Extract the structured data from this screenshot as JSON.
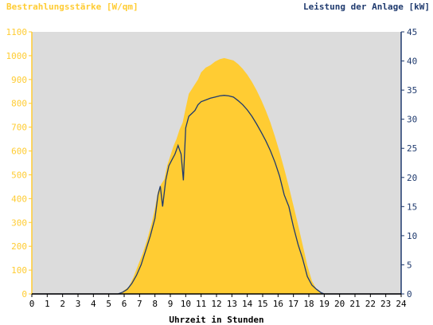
{
  "colors": {
    "plot_background": "#dcdcdc",
    "irradiance": "#ffcc33",
    "power": "#1f3a6e",
    "left_axis_text": "#ffcc33",
    "right_axis_text": "#1f3a6e",
    "x_axis_text": "#000000"
  },
  "chart_data": {
    "type": "area",
    "left_title": "Bestrahlungsstärke [W/qm]",
    "right_title": "Leistung der Anlage [kW]",
    "xlabel": "Uhrzeit in Stunden",
    "xlim": [
      0,
      24
    ],
    "y_left_lim": [
      0,
      1100
    ],
    "y_right_lim": [
      0,
      45
    ],
    "grid": false,
    "x_ticks": [
      0,
      1,
      2,
      3,
      4,
      5,
      6,
      7,
      8,
      9,
      10,
      11,
      12,
      13,
      14,
      15,
      16,
      17,
      18,
      19,
      20,
      21,
      22,
      23,
      24
    ],
    "y_left_ticks": [
      0,
      100,
      200,
      300,
      400,
      500,
      600,
      700,
      800,
      900,
      1000,
      1100
    ],
    "y_right_ticks": [
      0,
      5,
      10,
      15,
      20,
      25,
      30,
      35,
      40,
      45
    ],
    "series": [
      {
        "name": "Bestrahlungsstärke [W/qm]",
        "axis": "left",
        "style": "area",
        "points": [
          [
            0,
            0
          ],
          [
            5.5,
            0
          ],
          [
            5.8,
            5
          ],
          [
            6.0,
            15
          ],
          [
            6.3,
            30
          ],
          [
            6.6,
            70
          ],
          [
            6.9,
            120
          ],
          [
            7.2,
            170
          ],
          [
            7.5,
            230
          ],
          [
            7.8,
            300
          ],
          [
            8.0,
            360
          ],
          [
            8.2,
            430
          ],
          [
            8.4,
            460
          ],
          [
            8.6,
            480
          ],
          [
            8.8,
            540
          ],
          [
            9.0,
            580
          ],
          [
            9.2,
            620
          ],
          [
            9.4,
            650
          ],
          [
            9.6,
            690
          ],
          [
            9.8,
            720
          ],
          [
            10.0,
            780
          ],
          [
            10.2,
            840
          ],
          [
            10.4,
            860
          ],
          [
            10.6,
            880
          ],
          [
            10.8,
            900
          ],
          [
            11.0,
            930
          ],
          [
            11.3,
            950
          ],
          [
            11.6,
            960
          ],
          [
            11.9,
            975
          ],
          [
            12.2,
            985
          ],
          [
            12.5,
            990
          ],
          [
            12.8,
            985
          ],
          [
            13.1,
            980
          ],
          [
            13.4,
            965
          ],
          [
            13.7,
            945
          ],
          [
            14.0,
            920
          ],
          [
            14.3,
            890
          ],
          [
            14.6,
            855
          ],
          [
            14.9,
            815
          ],
          [
            15.2,
            770
          ],
          [
            15.5,
            720
          ],
          [
            15.8,
            660
          ],
          [
            16.1,
            595
          ],
          [
            16.4,
            525
          ],
          [
            16.7,
            450
          ],
          [
            17.0,
            370
          ],
          [
            17.3,
            290
          ],
          [
            17.6,
            205
          ],
          [
            17.9,
            120
          ],
          [
            18.2,
            55
          ],
          [
            18.5,
            20
          ],
          [
            18.8,
            5
          ],
          [
            19.0,
            0
          ],
          [
            24,
            0
          ]
        ]
      },
      {
        "name": "Leistung der Anlage [kW]",
        "axis": "right",
        "style": "line",
        "points": [
          [
            0,
            0
          ],
          [
            5.6,
            0
          ],
          [
            5.9,
            0.3
          ],
          [
            6.2,
            0.8
          ],
          [
            6.5,
            1.8
          ],
          [
            6.8,
            3.2
          ],
          [
            7.1,
            5.0
          ],
          [
            7.4,
            7.5
          ],
          [
            7.7,
            10.0
          ],
          [
            8.0,
            13.0
          ],
          [
            8.2,
            17.0
          ],
          [
            8.35,
            18.5
          ],
          [
            8.5,
            15.0
          ],
          [
            8.7,
            19.5
          ],
          [
            8.9,
            22.0
          ],
          [
            9.1,
            23.0
          ],
          [
            9.3,
            24.0
          ],
          [
            9.5,
            25.5
          ],
          [
            9.7,
            24.0
          ],
          [
            9.85,
            19.5
          ],
          [
            10.0,
            28.5
          ],
          [
            10.2,
            30.5
          ],
          [
            10.4,
            31.0
          ],
          [
            10.6,
            31.5
          ],
          [
            10.8,
            32.5
          ],
          [
            11.0,
            33.0
          ],
          [
            11.3,
            33.3
          ],
          [
            11.6,
            33.6
          ],
          [
            11.9,
            33.8
          ],
          [
            12.2,
            34.0
          ],
          [
            12.5,
            34.1
          ],
          [
            12.8,
            34.0
          ],
          [
            13.1,
            33.8
          ],
          [
            13.4,
            33.2
          ],
          [
            13.7,
            32.5
          ],
          [
            14.0,
            31.6
          ],
          [
            14.3,
            30.5
          ],
          [
            14.6,
            29.2
          ],
          [
            14.9,
            27.8
          ],
          [
            15.2,
            26.3
          ],
          [
            15.5,
            24.6
          ],
          [
            15.8,
            22.6
          ],
          [
            16.1,
            20.2
          ],
          [
            16.4,
            17.0
          ],
          [
            16.7,
            15.0
          ],
          [
            17.0,
            11.5
          ],
          [
            17.3,
            8.5
          ],
          [
            17.6,
            6.0
          ],
          [
            17.9,
            3.0
          ],
          [
            18.2,
            1.5
          ],
          [
            18.5,
            0.8
          ],
          [
            18.8,
            0.2
          ],
          [
            19.0,
            0
          ],
          [
            24,
            0
          ]
        ]
      }
    ]
  }
}
